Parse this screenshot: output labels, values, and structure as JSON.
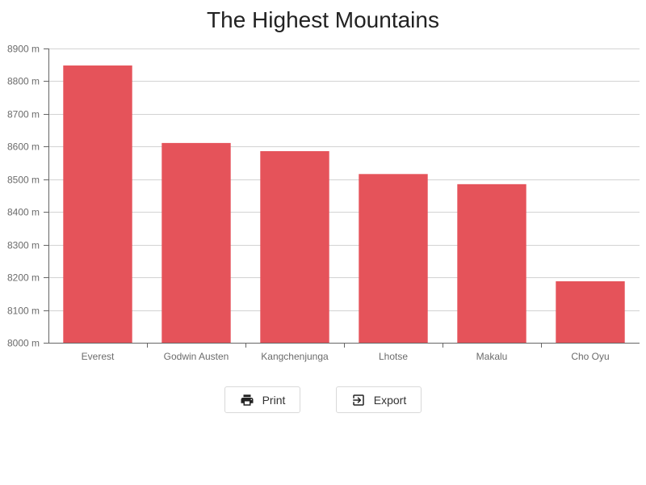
{
  "chart_data": {
    "type": "bar",
    "title": "The Highest Mountains",
    "categories": [
      "Everest",
      "Godwin Austen",
      "Kangchenjunga",
      "Lhotse",
      "Makalu",
      "Cho Oyu"
    ],
    "series": [
      {
        "values": [
          8848,
          8611,
          8586,
          8516,
          8485,
          8188
        ]
      }
    ],
    "ylim": [
      8000,
      8900
    ],
    "yticks": [
      8000,
      8100,
      8200,
      8300,
      8400,
      8500,
      8600,
      8700,
      8800,
      8900
    ],
    "ytick_suffix": " m",
    "grid": true,
    "bar_color": "#e5535a"
  },
  "toolbar": {
    "print_label": "Print",
    "print_icon": "printer-icon",
    "export_label": "Export",
    "export_icon": "export-icon"
  }
}
